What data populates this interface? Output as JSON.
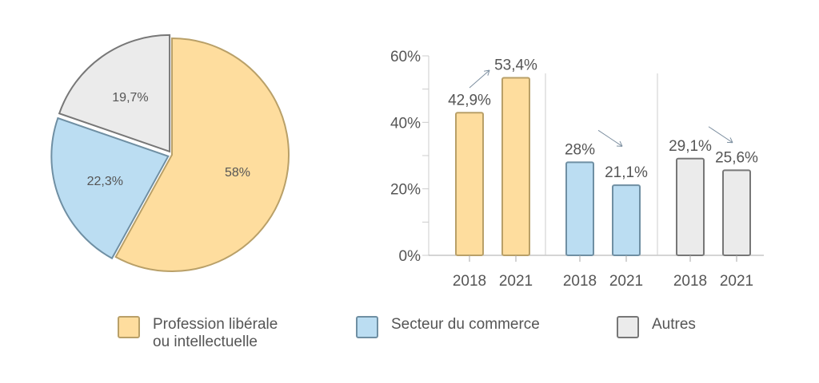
{
  "colors": {
    "liberal": {
      "fill": "#FEDD9E",
      "stroke": "#B9A068"
    },
    "commerce": {
      "fill": "#BBDDF2",
      "stroke": "#6F8FA3"
    },
    "autres": {
      "fill": "#EBEBEB",
      "stroke": "#777777"
    }
  },
  "legend": [
    {
      "key": "liberal",
      "line1": "Profession libérale",
      "line2": "ou intellectuelle"
    },
    {
      "key": "commerce",
      "line1": "Secteur du commerce",
      "line2": ""
    },
    {
      "key": "autres",
      "line1": "Autres",
      "line2": ""
    }
  ],
  "chart_data": [
    {
      "type": "pie",
      "slices": [
        {
          "key": "liberal",
          "value": 58,
          "label": "58%"
        },
        {
          "key": "commerce",
          "value": 22.3,
          "label": "22,3%"
        },
        {
          "key": "autres",
          "value": 19.7,
          "label": "19,7%"
        }
      ]
    },
    {
      "type": "bar",
      "ylim": [
        0,
        60
      ],
      "yticks": [
        0,
        20,
        40,
        60
      ],
      "ytick_labels": [
        "0%",
        "20%",
        "40%",
        "60%"
      ],
      "groups": [
        {
          "key": "liberal",
          "bars": [
            {
              "x": "2018",
              "value": 42.9,
              "label": "42,9%"
            },
            {
              "x": "2021",
              "value": 53.4,
              "label": "53,4%"
            }
          ],
          "trend": "up"
        },
        {
          "key": "commerce",
          "bars": [
            {
              "x": "2018",
              "value": 28,
              "label": "28%"
            },
            {
              "x": "2021",
              "value": 21.1,
              "label": "21,1%"
            }
          ],
          "trend": "down"
        },
        {
          "key": "autres",
          "bars": [
            {
              "x": "2018",
              "value": 29.1,
              "label": "29,1%"
            },
            {
              "x": "2021",
              "value": 25.6,
              "label": "25,6%"
            }
          ],
          "trend": "down"
        }
      ]
    }
  ]
}
